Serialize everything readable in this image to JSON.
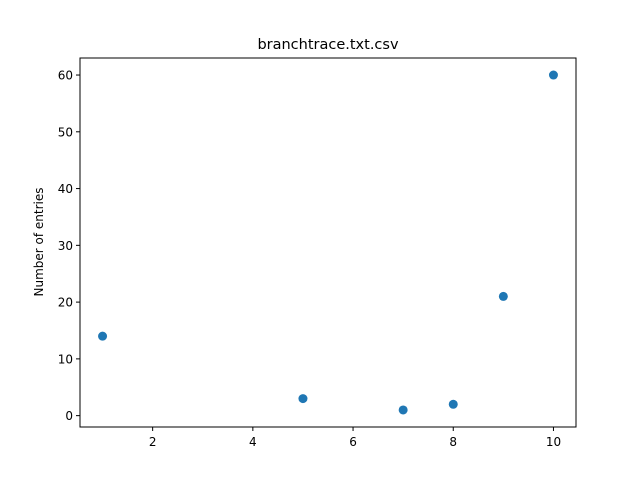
{
  "chart_data": {
    "type": "scatter",
    "title": "branchtrace.txt.csv",
    "xlabel": "",
    "ylabel": "Number of entries",
    "xlim": [
      0.55,
      10.45
    ],
    "ylim": [
      -2,
      63
    ],
    "xticks": [
      2,
      4,
      6,
      8,
      10
    ],
    "yticks": [
      0,
      10,
      20,
      30,
      40,
      50,
      60
    ],
    "grid": false,
    "points": [
      {
        "x": 1,
        "y": 14
      },
      {
        "x": 5,
        "y": 3
      },
      {
        "x": 7,
        "y": 1
      },
      {
        "x": 8,
        "y": 2
      },
      {
        "x": 9,
        "y": 21
      },
      {
        "x": 10,
        "y": 60
      }
    ],
    "colors": {
      "marker": "#1f77b4",
      "axis": "#000000"
    }
  }
}
